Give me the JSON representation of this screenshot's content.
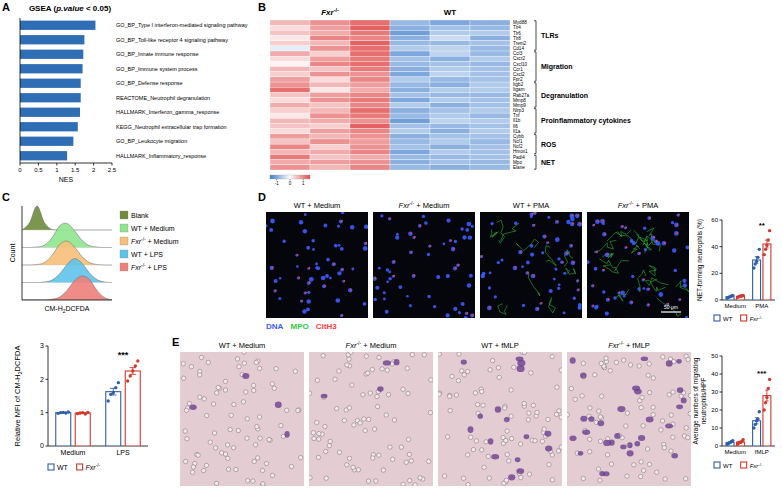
{
  "chart_data": [
    {
      "panel": "A",
      "type": "bar",
      "orientation": "horizontal",
      "title": "GSEA (p.value < 0.05)",
      "x_label": "NES",
      "categories": [
        "GO_BP_Type I interferon-mediated signaling pathway",
        "GO_BP_Toll-like receptor 4 signaling pathway",
        "GO_BP_Innate immune response",
        "GO_BP_Immune system process",
        "GO_BP_Defense response",
        "REACTOME_Neutrophil degranulation",
        "HALLMARK_Interferon_gamma_response",
        "KEGG_Neutrophil extracellular trap formation",
        "GO_BP_Leukocyte migration",
        "HALLMARK_Inflammatory_response"
      ],
      "values": [
        2.05,
        1.75,
        1.72,
        1.7,
        1.65,
        1.65,
        1.63,
        1.57,
        1.45,
        1.28
      ],
      "color": "#2f6eb5",
      "xlim": [
        0,
        2.5
      ],
      "xticks": [
        0,
        0.5,
        1,
        1.5,
        2,
        2.5
      ]
    },
    {
      "panel": "B",
      "type": "heatmap",
      "column_groups": [
        {
          "name": "Fxr-/-",
          "columns": 3
        },
        {
          "name": "WT",
          "columns": 3
        }
      ],
      "row_groups": [
        {
          "name": "TLRs",
          "rows": [
            "Myd88",
            "Tlr4",
            "Tlr6",
            "Tlr8",
            "Trem2",
            "Cd14"
          ],
          "values": [
            [
              0.6,
              0.9,
              1.2,
              -0.8,
              -1.0,
              -0.9
            ],
            [
              0.3,
              0.8,
              1.3,
              -0.9,
              -0.7,
              -0.8
            ],
            [
              0.5,
              0.7,
              1.1,
              -1.1,
              -0.6,
              -0.6
            ],
            [
              0.2,
              1.0,
              1.0,
              -0.9,
              -0.4,
              -0.9
            ],
            [
              0.4,
              0.6,
              1.3,
              -0.8,
              -0.8,
              -0.7
            ],
            [
              -0.2,
              0.9,
              1.2,
              -0.6,
              -0.5,
              -0.8
            ]
          ]
        },
        {
          "name": "Migration",
          "rows": [
            "Ccl3",
            "Cxcr2",
            "Cxcl10",
            "Ccr1",
            "Cxcl2",
            "Fpr2"
          ],
          "values": [
            [
              0.7,
              0.4,
              1.2,
              -1.0,
              -0.5,
              -0.8
            ],
            [
              0.3,
              0.8,
              1.1,
              -0.7,
              -0.9,
              -0.6
            ],
            [
              0.1,
              1.0,
              1.2,
              -0.8,
              -0.7,
              -0.8
            ],
            [
              0.6,
              0.5,
              1.1,
              -0.9,
              -0.6,
              -0.7
            ],
            [
              0.4,
              0.9,
              0.9,
              -1.0,
              -0.5,
              -0.7
            ],
            [
              0.8,
              0.3,
              1.0,
              -0.6,
              -0.8,
              -0.7
            ]
          ]
        },
        {
          "name": "Degranulation",
          "rows": [
            "Itgb2",
            "Itgam",
            "Rab27a",
            "Mmp8",
            "Mmp9"
          ],
          "values": [
            [
              0.9,
              0.6,
              0.8,
              -0.8,
              -0.9,
              -0.6
            ],
            [
              1.2,
              0.2,
              0.7,
              -0.9,
              -0.6,
              -0.6
            ],
            [
              0.5,
              0.8,
              1.0,
              -0.7,
              -0.8,
              -0.8
            ],
            [
              0.3,
              0.9,
              1.1,
              -1.0,
              -0.6,
              -0.7
            ],
            [
              0.7,
              0.5,
              1.0,
              -0.6,
              -0.9,
              -0.7
            ]
          ]
        },
        {
          "name": "Proinflammatory cytokines",
          "rows": [
            "Nlrp3",
            "Tnf",
            "Il1b",
            "Il6",
            "Il1a"
          ],
          "values": [
            [
              0.4,
              0.6,
              1.2,
              -0.9,
              -0.7,
              -0.6
            ],
            [
              0.2,
              0.9,
              1.1,
              -0.8,
              -0.6,
              -0.8
            ],
            [
              0.6,
              0.7,
              0.9,
              -1.1,
              -0.5,
              -0.6
            ],
            [
              0.5,
              0.4,
              1.3,
              -0.7,
              -0.8,
              -0.7
            ],
            [
              0.3,
              0.8,
              1.0,
              -0.6,
              -0.9,
              -0.6
            ]
          ]
        },
        {
          "name": "ROS",
          "rows": [
            "Cybb",
            "Ncf1",
            "Ncf2",
            "Hmox1"
          ],
          "values": [
            [
              0.8,
              0.6,
              0.9,
              -0.9,
              -0.7,
              -0.7
            ],
            [
              0.5,
              0.9,
              0.8,
              -0.8,
              -0.6,
              -0.8
            ],
            [
              1.0,
              0.4,
              0.9,
              -0.7,
              -0.9,
              -0.7
            ],
            [
              0.6,
              0.7,
              1.0,
              -1.0,
              -0.6,
              -0.7
            ]
          ]
        },
        {
          "name": "NET",
          "rows": [
            "Padi4",
            "Mpo",
            "Elane"
          ],
          "values": [
            [
              1.1,
              0.5,
              0.7,
              -0.8,
              -0.8,
              -0.7
            ],
            [
              0.7,
              0.8,
              0.9,
              -0.9,
              -0.7,
              -0.8
            ],
            [
              0.9,
              0.6,
              1.0,
              -0.8,
              -0.9,
              -0.8
            ]
          ]
        }
      ],
      "colors": [
        "#3d7ccc",
        "#ffffff",
        "#e04a4a"
      ],
      "colorbar": {
        "range": [
          -1.5,
          1.5
        ],
        "ticks": [
          -1,
          0,
          1
        ]
      }
    },
    {
      "panel": "C",
      "type": "ridgeline",
      "x_label": "CM-H2DCFDA",
      "y_label": "Count",
      "tick_labels": false,
      "legend": "right",
      "x": [
        0,
        1,
        2,
        3,
        4,
        5,
        6,
        7,
        8,
        9,
        10,
        11,
        12
      ],
      "xlim": [
        0,
        12
      ],
      "ylim": [
        0,
        1
      ],
      "series": [
        {
          "name": "Blank",
          "color": "#6e8c3a",
          "values": [
            0,
            0.3,
            1,
            0.3,
            0.02,
            0,
            0,
            0,
            0,
            0,
            0,
            0,
            0
          ]
        },
        {
          "name": "WT + Medium",
          "color": "#8fe58f",
          "values": [
            0,
            0,
            0.02,
            0.1,
            0.4,
            0.9,
            1,
            0.7,
            0.3,
            0.08,
            0.02,
            0,
            0
          ]
        },
        {
          "name": "Fxr-/- + Medium",
          "color": "#f6c07a",
          "values": [
            0,
            0,
            0.02,
            0.1,
            0.4,
            0.85,
            1,
            0.75,
            0.35,
            0.1,
            0.02,
            0,
            0
          ]
        },
        {
          "name": "WT + LPS",
          "color": "#5ec3ea",
          "values": [
            0,
            0,
            0,
            0.02,
            0.1,
            0.35,
            0.75,
            1,
            0.8,
            0.4,
            0.12,
            0.02,
            0
          ]
        },
        {
          "name": "Fxr-/- + LPS",
          "color": "#ee7f7a",
          "values": [
            0,
            0,
            0,
            0,
            0.03,
            0.12,
            0.4,
            0.8,
            1,
            0.85,
            0.4,
            0.1,
            0.01
          ]
        }
      ]
    },
    {
      "type": "bar",
      "y_label": "Relative MFI of CM-H2DCFDA",
      "categories": [
        "Medium",
        "LPS"
      ],
      "ylim": [
        0,
        3
      ],
      "yticks": [
        0,
        1,
        2,
        3
      ],
      "legend": "bottom",
      "series": [
        {
          "name": "WT",
          "color": "#2f5fa8",
          "values": [
            1.0,
            1.63
          ],
          "errors": [
            0.01,
            0.1
          ],
          "points": [
            [
              0.98,
              1.0,
              1.01,
              0.99,
              1.02
            ],
            [
              1.35,
              1.55,
              1.6,
              1.75,
              1.9
            ]
          ]
        },
        {
          "name": "Fxr-/-",
          "color": "#d2382c",
          "values": [
            0.99,
            2.25
          ],
          "errors": [
            0.01,
            0.1
          ],
          "points": [
            [
              0.97,
              0.99,
              1.0,
              0.96,
              1.01
            ],
            [
              1.95,
              2.1,
              2.25,
              2.4,
              2.55
            ]
          ]
        }
      ],
      "annotations": [
        {
          "text": "***",
          "category": "LPS"
        }
      ]
    },
    {
      "type": "bar",
      "y_label": "NET-forming neutrophils (%)",
      "categories": [
        "Medium",
        "PMA"
      ],
      "ylim": [
        0,
        60
      ],
      "yticks": [
        0,
        20,
        40,
        60
      ],
      "legend": "bottom",
      "series": [
        {
          "name": "WT",
          "color": "#2f5fa8",
          "values": [
            2.5,
            30
          ],
          "errors": [
            0.4,
            2.5
          ],
          "points": [
            [
              1.5,
              2,
              2.5,
              3,
              3.5
            ],
            [
              24,
              27,
              29,
              32,
              38
            ]
          ]
        },
        {
          "name": "Fxr-/-",
          "color": "#d2382c",
          "values": [
            2.8,
            42
          ],
          "errors": [
            0.3,
            3
          ],
          "points": [
            [
              2,
              2.5,
              3,
              3,
              3.5
            ],
            [
              34,
              38,
              41,
              45,
              52
            ]
          ]
        }
      ],
      "annotations": [
        {
          "text": "**",
          "category": "PMA"
        }
      ]
    },
    {
      "type": "bar",
      "y_label": "Average numbers of migrating neutrophils/HPF",
      "categories": [
        "Medium",
        "fMLP"
      ],
      "ylim": [
        0,
        50
      ],
      "yticks": [
        0,
        10,
        20,
        30,
        40,
        50
      ],
      "legend": "bottom",
      "series": [
        {
          "name": "WT",
          "color": "#2f5fa8",
          "values": [
            2,
            14
          ],
          "errors": [
            0.4,
            1.7
          ],
          "points": [
            [
              1,
              1.5,
              2,
              2.5,
              3
            ],
            [
              10,
              12,
              14,
              15,
              19
            ]
          ]
        },
        {
          "name": "Fxr-/-",
          "color": "#d2382c",
          "values": [
            2.2,
            28
          ],
          "errors": [
            0.4,
            3
          ],
          "points": [
            [
              1,
              2,
              2,
              2.5,
              3.5
            ],
            [
              20,
              24,
              27,
              32,
              37
            ]
          ]
        }
      ],
      "annotations": [
        {
          "text": "***",
          "category": "fMLP"
        }
      ]
    }
  ],
  "micrographs": [
    {
      "panel": "D",
      "titles": [
        "WT + Medium",
        "Fxr-/- + Medium",
        "WT + PMA",
        "Fxr-/- + PMA"
      ],
      "stains": [
        {
          "name": "DNA",
          "color": "#3a5cff"
        },
        {
          "name": "MPO",
          "color": "#2ecc40"
        },
        {
          "name": "CitH3",
          "color": "#ff3b3b"
        }
      ],
      "scale_bar": "50 μm"
    },
    {
      "panel": "E",
      "titles": [
        "WT + Medium",
        "Fxr-/- + Medium",
        "WT + fMLP",
        "Fxr-/- + fMLP"
      ]
    }
  ]
}
